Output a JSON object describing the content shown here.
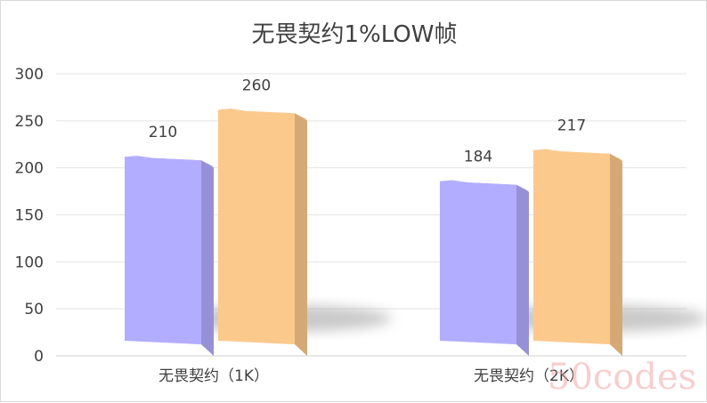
{
  "chart_data": {
    "type": "bar",
    "title": "无畏契约1%LOW帧",
    "categories": [
      "无畏契约（1K）",
      "无畏契约（2K）"
    ],
    "series": [
      {
        "values": [
          210,
          184
        ],
        "color": "#b3adff"
      },
      {
        "values": [
          260,
          217
        ],
        "color": "#fcc98d"
      }
    ],
    "ylim": [
      0,
      300
    ],
    "yticks": [
      "0",
      "50",
      "100",
      "150",
      "200",
      "250",
      "300"
    ],
    "grid": true,
    "style": "3d-perspective"
  },
  "watermark": "50codes"
}
